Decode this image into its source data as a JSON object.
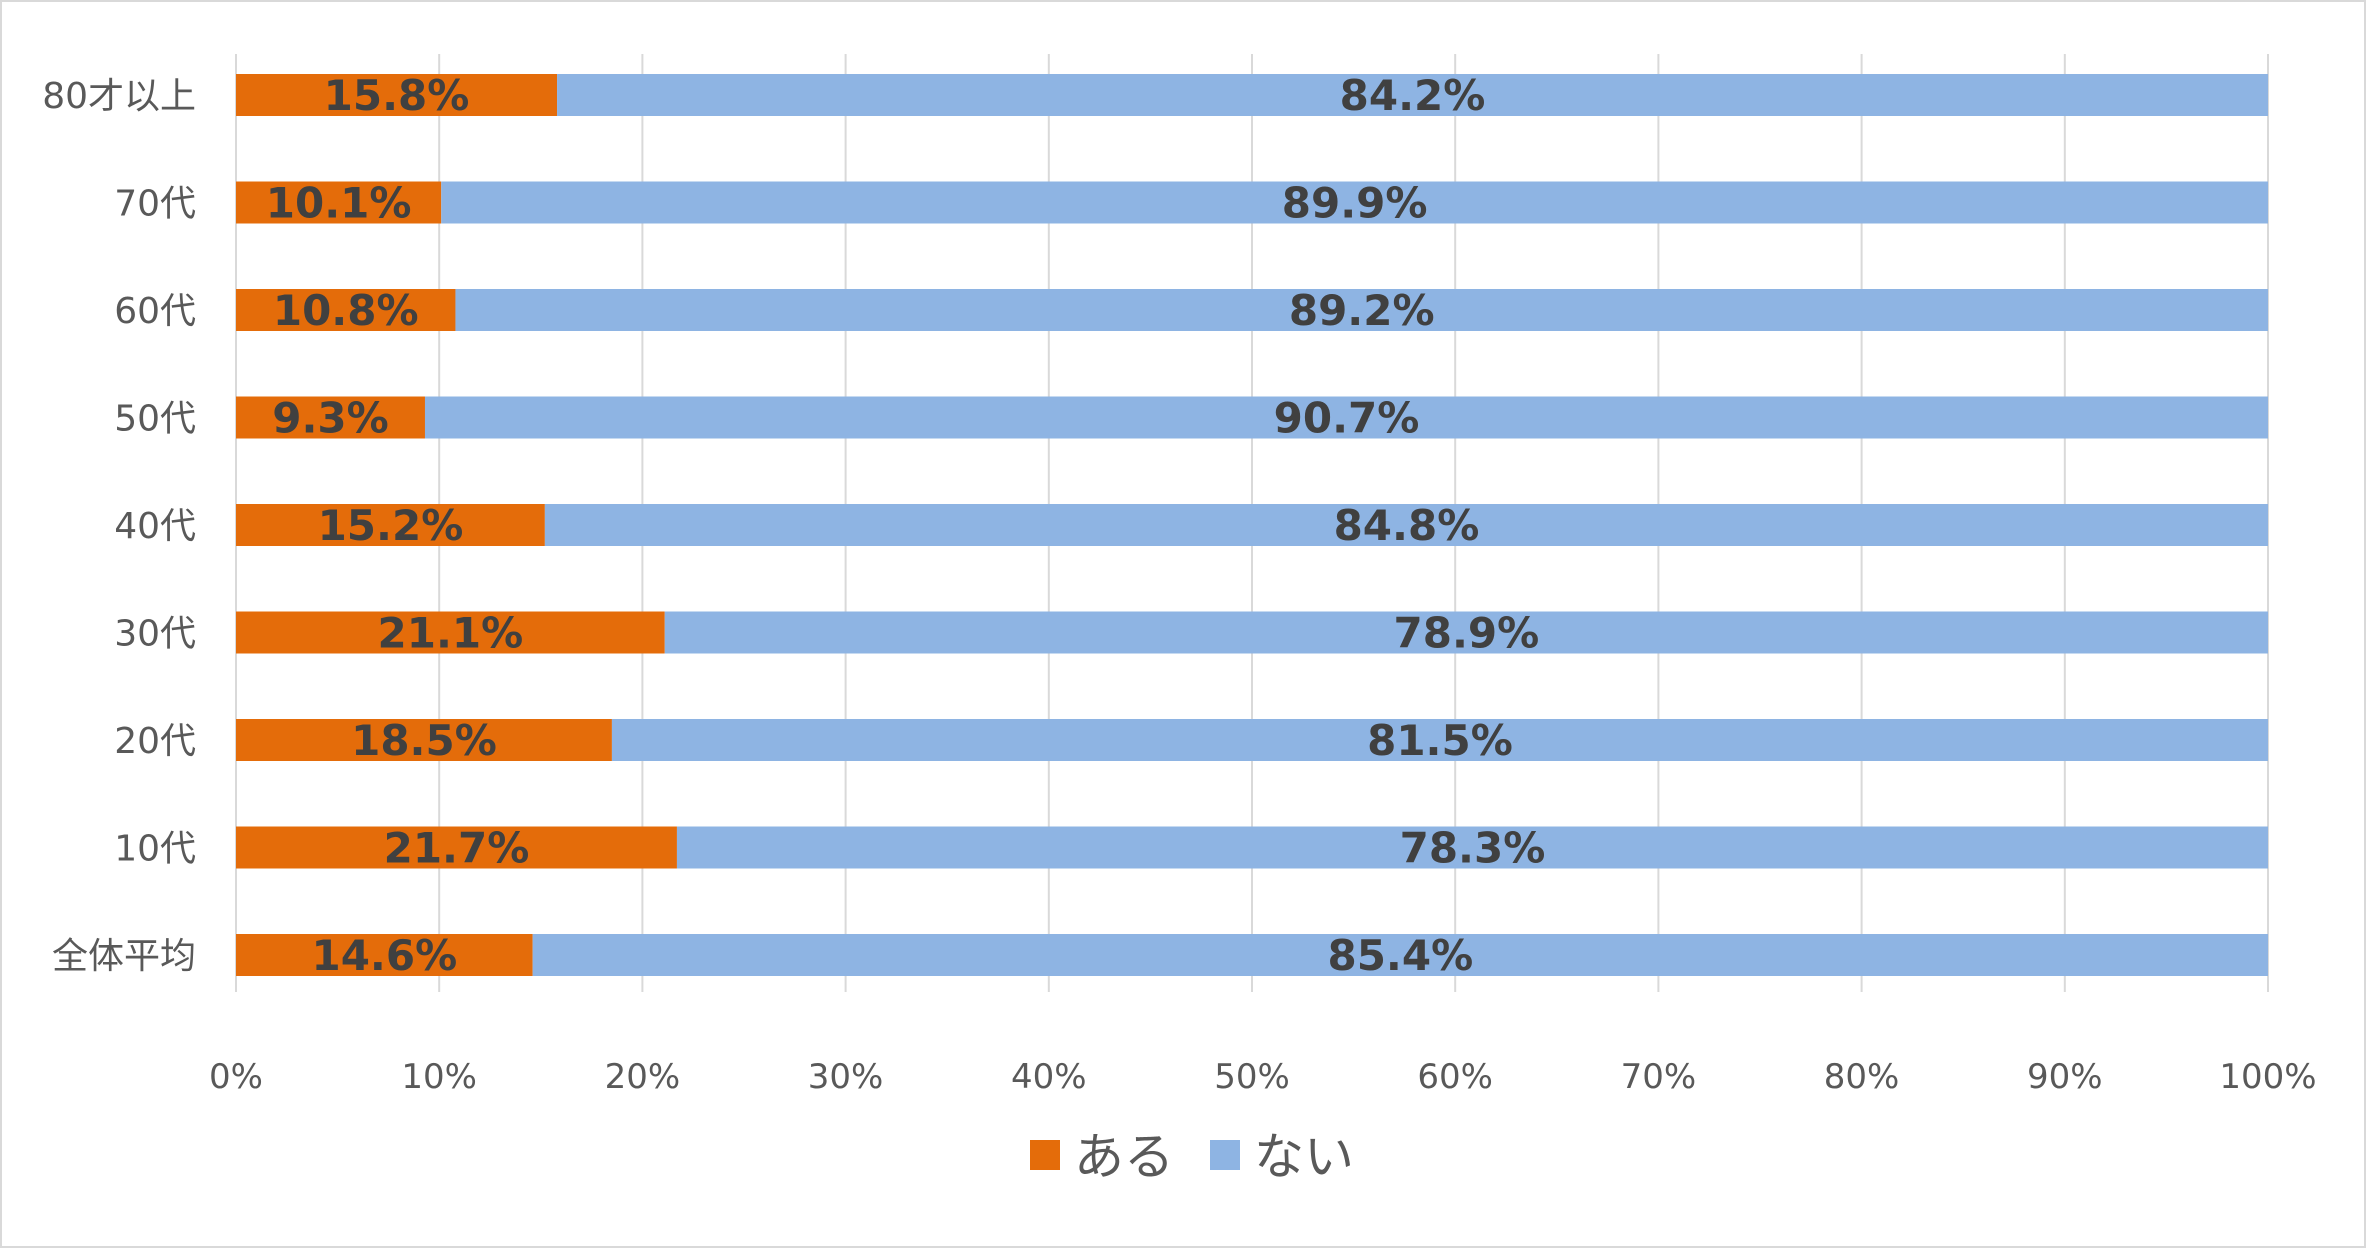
{
  "chart_data": {
    "type": "bar",
    "orientation": "horizontal",
    "stacked": "percent",
    "categories": [
      "80才以上",
      "70代",
      "60代",
      "50代",
      "40代",
      "30代",
      "20代",
      "10代",
      "全体平均"
    ],
    "series": [
      {
        "name": "ある",
        "color": "#E46C0A",
        "values": [
          15.8,
          10.1,
          10.8,
          9.3,
          15.2,
          21.1,
          18.5,
          21.7,
          14.6
        ],
        "labels": [
          "15.8%",
          "10.1%",
          "10.8%",
          "9.3%",
          "15.2%",
          "21.1%",
          "18.5%",
          "21.7%",
          "14.6%"
        ]
      },
      {
        "name": "ない",
        "color": "#8EB4E3",
        "values": [
          84.2,
          89.9,
          89.2,
          90.7,
          84.8,
          78.9,
          81.5,
          78.3,
          85.4
        ],
        "labels": [
          "84.2%",
          "89.9%",
          "89.2%",
          "90.7%",
          "84.8%",
          "78.9%",
          "81.5%",
          "78.3%",
          "85.4%"
        ]
      }
    ],
    "xlim": [
      0,
      100
    ],
    "x_ticks": [
      "0%",
      "10%",
      "20%",
      "30%",
      "40%",
      "50%",
      "60%",
      "70%",
      "80%",
      "90%",
      "100%"
    ],
    "grid": "vertical",
    "legend_position": "bottom",
    "title": "",
    "xlabel": "",
    "ylabel": ""
  }
}
